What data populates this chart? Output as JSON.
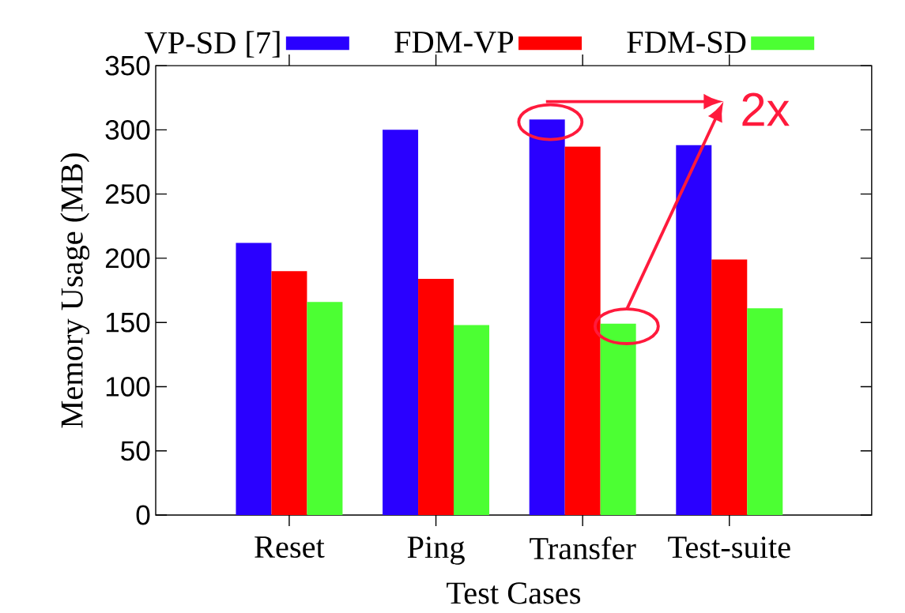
{
  "chart_data": {
    "type": "bar",
    "categories": [
      "Reset",
      "Ping",
      "Transfer",
      "Test-suite"
    ],
    "series": [
      {
        "name": "VP-SD [7]",
        "color": "#2a00ff",
        "values": [
          212,
          300,
          308,
          288
        ]
      },
      {
        "name": "FDM-VP",
        "color": "#ff0000",
        "values": [
          190,
          184,
          287,
          199
        ]
      },
      {
        "name": "FDM-SD",
        "color": "#4cff33",
        "values": [
          166,
          148,
          149,
          161
        ]
      }
    ],
    "xlabel": "Test Cases",
    "ylabel": "Memory Usage (MB)",
    "ylim": [
      0,
      350
    ],
    "yticks": [
      0,
      50,
      100,
      150,
      200,
      250,
      300,
      350
    ],
    "legend": "top",
    "grid": false,
    "annotations": [
      "2x"
    ]
  }
}
